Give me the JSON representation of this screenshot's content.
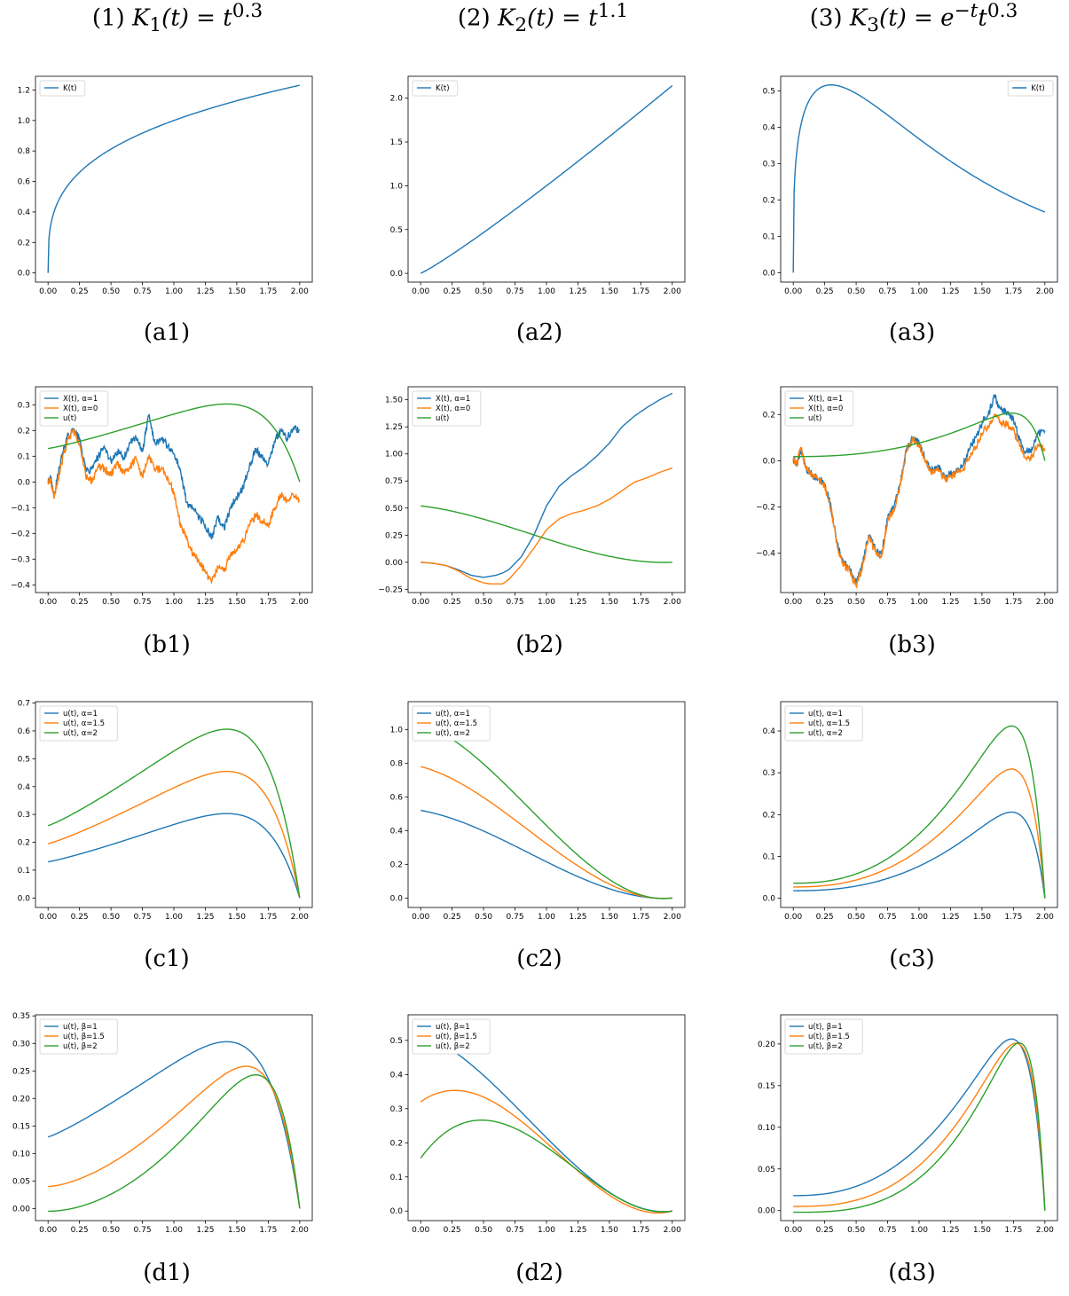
{
  "column_titles": [
    {
      "pre": "(1) ",
      "fn": "K",
      "sub": "1",
      "arg": "(t) = ",
      "base": "t",
      "sup": "0.3"
    },
    {
      "pre": "(2) ",
      "fn": "K",
      "sub": "2",
      "arg": "(t) = ",
      "base": "t",
      "sup": "1.1"
    },
    {
      "pre": "(3) ",
      "fn": "K",
      "sub": "3",
      "arg": "(t) = ",
      "base": "e",
      "sup": "−t",
      "tail": "t",
      "sup2": "0.3"
    }
  ],
  "colors": {
    "blue": "#1f77b4",
    "orange": "#ff7f0e",
    "green": "#2ca02c"
  },
  "chart_data": [
    {
      "id": "a1",
      "caption": "(a1)",
      "type": "line",
      "xlim": [
        -0.1,
        2.1
      ],
      "ylim": [
        -0.06,
        1.29
      ],
      "yticks": [
        0.0,
        0.2,
        0.4,
        0.6,
        0.8,
        1.0,
        1.2
      ],
      "ydec": 1,
      "legend": "top-left",
      "series": [
        {
          "name": "K(t)",
          "color": "blue",
          "fn": "t^0.3"
        }
      ]
    },
    {
      "id": "a2",
      "caption": "(a2)",
      "type": "line",
      "xlim": [
        -0.1,
        2.1
      ],
      "ylim": [
        -0.1,
        2.25
      ],
      "yticks": [
        0.0,
        0.5,
        1.0,
        1.5,
        2.0
      ],
      "ydec": 1,
      "legend": "top-left",
      "series": [
        {
          "name": "K(t)",
          "color": "blue",
          "fn": "t^1.1"
        }
      ]
    },
    {
      "id": "a3",
      "caption": "(a3)",
      "type": "line",
      "xlim": [
        -0.1,
        2.1
      ],
      "ylim": [
        -0.026,
        0.54
      ],
      "yticks": [
        0.0,
        0.1,
        0.2,
        0.3,
        0.4,
        0.5
      ],
      "ydec": 1,
      "legend": "top-right",
      "series": [
        {
          "name": "K(t)",
          "color": "blue",
          "fn": "e^-t*t^0.3"
        }
      ]
    },
    {
      "id": "b1",
      "caption": "(b1)",
      "type": "line",
      "xlim": [
        -0.1,
        2.1
      ],
      "ylim": [
        -0.43,
        0.37
      ],
      "yticks": [
        -0.4,
        -0.3,
        -0.2,
        -0.1,
        0.0,
        0.1,
        0.2,
        0.3
      ],
      "ydec": 1,
      "legend": "top-left",
      "series": [
        {
          "name": "X(t), α=1",
          "color": "blue",
          "noisy": true,
          "x": [
            0,
            0.02,
            0.05,
            0.1,
            0.15,
            0.2,
            0.25,
            0.3,
            0.35,
            0.4,
            0.45,
            0.5,
            0.55,
            0.6,
            0.65,
            0.7,
            0.75,
            0.8,
            0.85,
            0.9,
            0.95,
            1.0,
            1.05,
            1.1,
            1.15,
            1.2,
            1.25,
            1.3,
            1.35,
            1.4,
            1.45,
            1.5,
            1.55,
            1.6,
            1.65,
            1.7,
            1.75,
            1.8,
            1.85,
            1.9,
            1.95,
            2.0
          ],
          "y": [
            0.0,
            0.02,
            -0.05,
            0.08,
            0.17,
            0.2,
            0.17,
            0.04,
            0.05,
            0.1,
            0.13,
            0.08,
            0.12,
            0.09,
            0.15,
            0.17,
            0.12,
            0.26,
            0.15,
            0.17,
            0.14,
            0.11,
            0.05,
            -0.08,
            -0.1,
            -0.14,
            -0.17,
            -0.22,
            -0.14,
            -0.18,
            -0.1,
            -0.06,
            -0.02,
            0.06,
            0.13,
            0.1,
            0.07,
            0.16,
            0.2,
            0.17,
            0.21,
            0.2
          ]
        },
        {
          "name": "X(t), α=0",
          "color": "orange",
          "noisy": true,
          "x": [
            0,
            0.02,
            0.05,
            0.1,
            0.15,
            0.2,
            0.25,
            0.3,
            0.35,
            0.4,
            0.45,
            0.5,
            0.55,
            0.6,
            0.65,
            0.7,
            0.75,
            0.8,
            0.85,
            0.9,
            0.95,
            1.0,
            1.05,
            1.1,
            1.15,
            1.2,
            1.25,
            1.3,
            1.35,
            1.4,
            1.45,
            1.5,
            1.55,
            1.6,
            1.65,
            1.7,
            1.75,
            1.8,
            1.85,
            1.9,
            1.95,
            2.0
          ],
          "y": [
            0.0,
            0.01,
            -0.06,
            0.06,
            0.15,
            0.2,
            0.15,
            0.02,
            0.0,
            0.06,
            0.05,
            0.03,
            0.07,
            0.04,
            0.06,
            0.09,
            0.02,
            0.1,
            0.05,
            0.05,
            0.02,
            -0.04,
            -0.16,
            -0.22,
            -0.28,
            -0.31,
            -0.35,
            -0.39,
            -0.33,
            -0.35,
            -0.28,
            -0.26,
            -0.23,
            -0.17,
            -0.13,
            -0.15,
            -0.17,
            -0.1,
            -0.05,
            -0.07,
            -0.05,
            -0.07
          ]
        },
        {
          "name": "u(t)",
          "color": "green",
          "fn": "u1_a1"
        }
      ]
    },
    {
      "id": "b2",
      "caption": "(b2)",
      "type": "line",
      "xlim": [
        -0.1,
        2.1
      ],
      "ylim": [
        -0.28,
        1.62
      ],
      "yticks": [
        -0.25,
        0.0,
        0.25,
        0.5,
        0.75,
        1.0,
        1.25,
        1.5
      ],
      "ydec": 2,
      "legend": "top-left",
      "series": [
        {
          "name": "X(t), α=1",
          "color": "blue",
          "x": [
            0,
            0.1,
            0.2,
            0.3,
            0.4,
            0.5,
            0.55,
            0.6,
            0.65,
            0.7,
            0.8,
            0.9,
            1.0,
            1.1,
            1.2,
            1.3,
            1.4,
            1.5,
            1.6,
            1.7,
            1.8,
            1.9,
            2.0
          ],
          "y": [
            0.0,
            -0.01,
            -0.03,
            -0.07,
            -0.12,
            -0.14,
            -0.13,
            -0.12,
            -0.1,
            -0.07,
            0.05,
            0.25,
            0.52,
            0.7,
            0.8,
            0.88,
            0.98,
            1.1,
            1.25,
            1.35,
            1.43,
            1.5,
            1.56
          ]
        },
        {
          "name": "X(t), α=0",
          "color": "orange",
          "x": [
            0,
            0.1,
            0.2,
            0.3,
            0.4,
            0.5,
            0.55,
            0.6,
            0.65,
            0.7,
            0.8,
            0.9,
            1.0,
            1.1,
            1.2,
            1.3,
            1.4,
            1.5,
            1.6,
            1.7,
            1.8,
            1.9,
            2.0
          ],
          "y": [
            0.0,
            -0.01,
            -0.03,
            -0.08,
            -0.15,
            -0.19,
            -0.2,
            -0.2,
            -0.2,
            -0.16,
            -0.03,
            0.13,
            0.3,
            0.4,
            0.45,
            0.48,
            0.52,
            0.58,
            0.66,
            0.74,
            0.78,
            0.83,
            0.87
          ]
        },
        {
          "name": "u(t)",
          "color": "green",
          "fn": "u2_a1"
        }
      ]
    },
    {
      "id": "b3",
      "caption": "(b3)",
      "type": "line",
      "xlim": [
        -0.1,
        2.1
      ],
      "ylim": [
        -0.57,
        0.32
      ],
      "yticks": [
        -0.4,
        -0.2,
        0.0,
        0.2
      ],
      "ydec": 1,
      "legend": "top-left",
      "series": [
        {
          "name": "X(t), α=1",
          "color": "blue",
          "noisy": true,
          "x": [
            0,
            0.03,
            0.06,
            0.1,
            0.15,
            0.2,
            0.25,
            0.3,
            0.35,
            0.4,
            0.45,
            0.5,
            0.55,
            0.6,
            0.65,
            0.7,
            0.75,
            0.8,
            0.85,
            0.9,
            0.95,
            1.0,
            1.05,
            1.1,
            1.15,
            1.2,
            1.25,
            1.3,
            1.35,
            1.4,
            1.45,
            1.5,
            1.55,
            1.6,
            1.65,
            1.7,
            1.75,
            1.8,
            1.85,
            1.9,
            1.95,
            2.0
          ],
          "y": [
            0.0,
            -0.01,
            0.05,
            -0.03,
            -0.06,
            -0.08,
            -0.1,
            -0.2,
            -0.36,
            -0.44,
            -0.47,
            -0.53,
            -0.45,
            -0.32,
            -0.38,
            -0.41,
            -0.25,
            -0.2,
            -0.1,
            0.05,
            0.1,
            0.08,
            0.0,
            -0.04,
            -0.02,
            -0.07,
            -0.06,
            -0.04,
            -0.02,
            0.05,
            0.1,
            0.16,
            0.2,
            0.28,
            0.22,
            0.21,
            0.18,
            0.09,
            0.04,
            0.05,
            0.12,
            0.13
          ]
        },
        {
          "name": "X(t), α=0",
          "color": "orange",
          "noisy": true,
          "x": [
            0,
            0.03,
            0.06,
            0.1,
            0.15,
            0.2,
            0.25,
            0.3,
            0.35,
            0.4,
            0.45,
            0.5,
            0.55,
            0.6,
            0.65,
            0.7,
            0.75,
            0.8,
            0.85,
            0.9,
            0.95,
            1.0,
            1.05,
            1.1,
            1.15,
            1.2,
            1.25,
            1.3,
            1.35,
            1.4,
            1.45,
            1.5,
            1.55,
            1.6,
            1.65,
            1.7,
            1.75,
            1.8,
            1.85,
            1.9,
            1.95,
            2.0
          ],
          "y": [
            0.0,
            -0.01,
            0.06,
            -0.03,
            -0.06,
            -0.08,
            -0.11,
            -0.21,
            -0.37,
            -0.45,
            -0.48,
            -0.54,
            -0.46,
            -0.33,
            -0.39,
            -0.42,
            -0.26,
            -0.21,
            -0.11,
            0.04,
            0.09,
            0.07,
            -0.01,
            -0.05,
            -0.03,
            -0.08,
            -0.07,
            -0.05,
            -0.04,
            0.02,
            0.06,
            0.12,
            0.15,
            0.2,
            0.16,
            0.16,
            0.13,
            0.06,
            0.01,
            0.02,
            0.07,
            0.05
          ]
        },
        {
          "name": "u(t)",
          "color": "green",
          "fn": "u3_a1"
        }
      ]
    },
    {
      "id": "c1",
      "caption": "(c1)",
      "type": "line",
      "xlim": [
        -0.1,
        2.1
      ],
      "ylim": [
        -0.034,
        0.705
      ],
      "yticks": [
        0.0,
        0.1,
        0.2,
        0.3,
        0.4,
        0.5,
        0.6,
        0.7
      ],
      "ydec": 1,
      "legend": "top-left",
      "series": [
        {
          "name": "u(t), α=1",
          "color": "blue",
          "fn": "u1_a1"
        },
        {
          "name": "u(t), α=1.5",
          "color": "orange",
          "fn": "u1_a15"
        },
        {
          "name": "u(t), α=2",
          "color": "green",
          "fn": "u1_a2"
        }
      ]
    },
    {
      "id": "c2",
      "caption": "(c2)",
      "type": "line",
      "xlim": [
        -0.1,
        2.1
      ],
      "ylim": [
        -0.056,
        1.165
      ],
      "yticks": [
        0.0,
        0.2,
        0.4,
        0.6,
        0.8,
        1.0
      ],
      "ydec": 1,
      "legend": "top-left",
      "series": [
        {
          "name": "u(t), α=1",
          "color": "blue",
          "fn": "u2_a1"
        },
        {
          "name": "u(t), α=1.5",
          "color": "orange",
          "fn": "u2_a15"
        },
        {
          "name": "u(t), α=2",
          "color": "green",
          "fn": "u2_a2"
        }
      ]
    },
    {
      "id": "c3",
      "caption": "(c3)",
      "type": "line",
      "xlim": [
        -0.1,
        2.1
      ],
      "ylim": [
        -0.022,
        0.47
      ],
      "yticks": [
        0.0,
        0.1,
        0.2,
        0.3,
        0.4
      ],
      "ydec": 1,
      "legend": "top-left",
      "series": [
        {
          "name": "u(t), α=1",
          "color": "blue",
          "fn": "u3_a1"
        },
        {
          "name": "u(t), α=1.5",
          "color": "orange",
          "fn": "u3_a15"
        },
        {
          "name": "u(t), α=2",
          "color": "green",
          "fn": "u3_a2"
        }
      ]
    },
    {
      "id": "d1",
      "caption": "(d1)",
      "type": "line",
      "xlim": [
        -0.1,
        2.1
      ],
      "ylim": [
        -0.022,
        0.352
      ],
      "yticks": [
        0.0,
        0.05,
        0.1,
        0.15,
        0.2,
        0.25,
        0.3,
        0.35
      ],
      "ydec": 2,
      "legend": "top-left",
      "series": [
        {
          "name": "u(t), β=1",
          "color": "blue",
          "fn": "u1_a1"
        },
        {
          "name": "u(t), β=1.5",
          "color": "orange",
          "fn": "d1_b15"
        },
        {
          "name": "u(t), β=2",
          "color": "green",
          "fn": "d1_b2"
        }
      ]
    },
    {
      "id": "d2",
      "caption": "(d2)",
      "type": "line",
      "xlim": [
        -0.1,
        2.1
      ],
      "ylim": [
        -0.028,
        0.575
      ],
      "yticks": [
        0.0,
        0.1,
        0.2,
        0.3,
        0.4,
        0.5
      ],
      "ydec": 1,
      "legend": "top-left",
      "series": [
        {
          "name": "u(t), β=1",
          "color": "blue",
          "fn": "u2_a1"
        },
        {
          "name": "u(t), β=1.5",
          "color": "orange",
          "fn": "d2_b15"
        },
        {
          "name": "u(t), β=2",
          "color": "green",
          "fn": "d2_b2"
        }
      ]
    },
    {
      "id": "d3",
      "caption": "(d3)",
      "type": "line",
      "xlim": [
        -0.1,
        2.1
      ],
      "ylim": [
        -0.012,
        0.235
      ],
      "yticks": [
        0.0,
        0.05,
        0.1,
        0.15,
        0.2
      ],
      "ydec": 2,
      "legend": "top-left",
      "series": [
        {
          "name": "u(t), β=1",
          "color": "blue",
          "fn": "u3_a1"
        },
        {
          "name": "u(t), β=1.5",
          "color": "orange",
          "fn": "d3_b15"
        },
        {
          "name": "u(t), β=2",
          "color": "green",
          "fn": "d3_b2"
        }
      ]
    }
  ],
  "xticks": [
    0.0,
    0.25,
    0.5,
    0.75,
    1.0,
    1.25,
    1.5,
    1.75,
    2.0
  ]
}
